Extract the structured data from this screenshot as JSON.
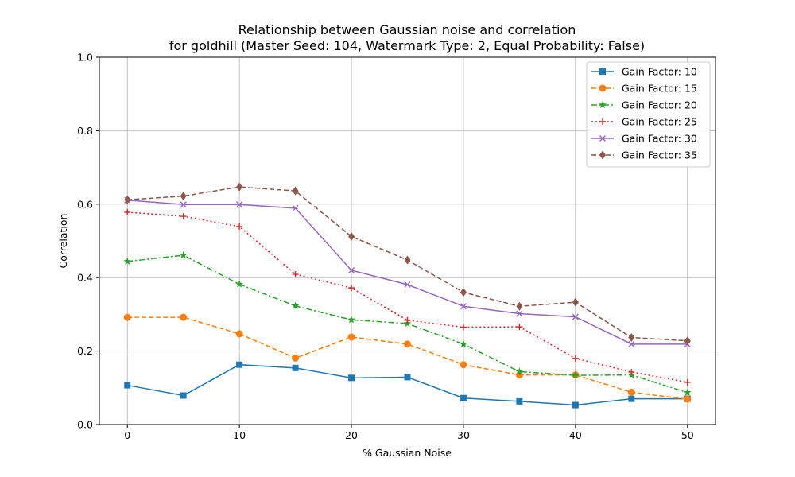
{
  "chart_data": {
    "type": "line",
    "title": "Relationship between Gaussian noise and correlation",
    "subtitle": "for goldhill (Master Seed: 104, Watermark Type: 2, Equal Probability: False)",
    "xlabel": "% Gaussian Noise",
    "ylabel": "Correlation",
    "xlim": [
      -2.5,
      52.5
    ],
    "ylim": [
      0.0,
      1.0
    ],
    "xticks": [
      0,
      10,
      20,
      30,
      40,
      50
    ],
    "yticks": [
      0.0,
      0.2,
      0.4,
      0.6,
      0.8,
      1.0
    ],
    "xtick_labels": [
      "0",
      "10",
      "20",
      "30",
      "40",
      "50"
    ],
    "ytick_labels": [
      "0.0",
      "0.2",
      "0.4",
      "0.6",
      "0.8",
      "1.0"
    ],
    "grid": true,
    "legend_position": "top-right",
    "x": [
      0,
      5,
      10,
      15,
      20,
      25,
      30,
      35,
      40,
      45,
      50
    ],
    "series": [
      {
        "name": "Gain Factor: 10",
        "color": "#1f77b4",
        "dash": "solid",
        "marker": "square",
        "values": [
          0.107,
          0.079,
          0.163,
          0.154,
          0.127,
          0.129,
          0.072,
          0.063,
          0.053,
          0.07,
          0.07
        ]
      },
      {
        "name": "Gain Factor: 15",
        "color": "#ff7f0e",
        "dash": "dashed",
        "marker": "circle",
        "values": [
          0.292,
          0.292,
          0.247,
          0.181,
          0.238,
          0.219,
          0.163,
          0.135,
          0.135,
          0.088,
          0.069
        ]
      },
      {
        "name": "Gain Factor: 20",
        "color": "#2ca02c",
        "dash": "dashdot",
        "marker": "star",
        "values": [
          0.444,
          0.461,
          0.382,
          0.323,
          0.285,
          0.275,
          0.219,
          0.144,
          0.134,
          0.135,
          0.087
        ]
      },
      {
        "name": "Gain Factor: 25",
        "color": "#d62728",
        "dash": "dotted",
        "marker": "plus",
        "values": [
          0.578,
          0.567,
          0.539,
          0.409,
          0.372,
          0.284,
          0.265,
          0.266,
          0.18,
          0.143,
          0.115
        ]
      },
      {
        "name": "Gain Factor: 30",
        "color": "#9467bd",
        "dash": "solid",
        "marker": "x",
        "values": [
          0.611,
          0.599,
          0.599,
          0.589,
          0.42,
          0.381,
          0.322,
          0.302,
          0.293,
          0.219,
          0.219
        ]
      },
      {
        "name": "Gain Factor: 35",
        "color": "#8c564b",
        "dash": "dashed",
        "marker": "diamond",
        "values": [
          0.612,
          0.622,
          0.647,
          0.636,
          0.512,
          0.448,
          0.36,
          0.322,
          0.333,
          0.237,
          0.228
        ]
      }
    ]
  }
}
